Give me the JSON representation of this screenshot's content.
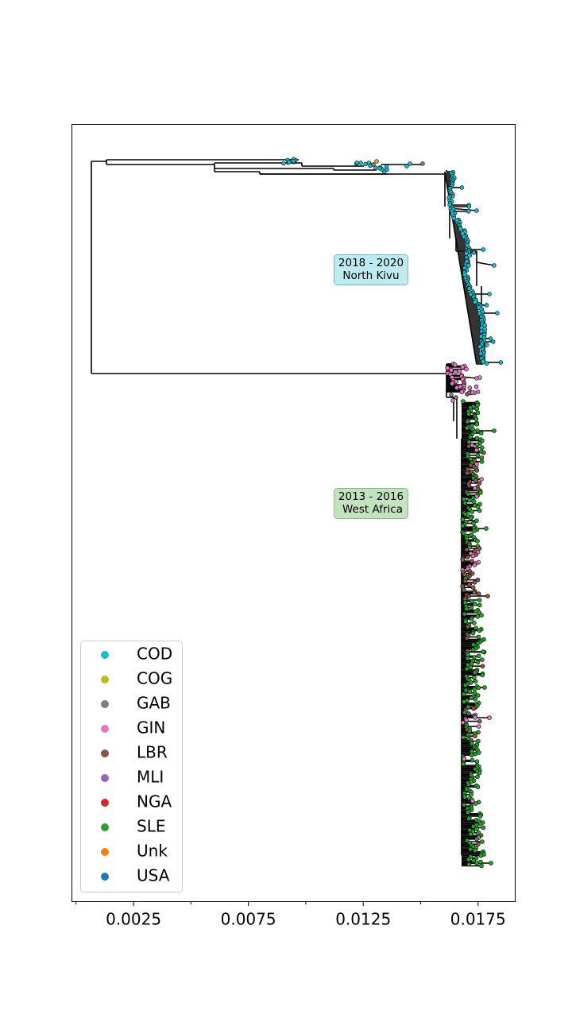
{
  "chart_data": {
    "type": "scatter",
    "subtype": "phylogenetic-tree",
    "title": "",
    "xlabel": "",
    "ylabel": "",
    "xlim": [
      -0.0002,
      0.0191
    ],
    "xticks_major": [
      0.0025,
      0.0075,
      0.0125,
      0.0175
    ],
    "xtick_labels": [
      "0.0025",
      "0.0075",
      "0.0125",
      "0.0175"
    ],
    "xticks_minor": [
      0.0,
      0.005,
      0.01,
      0.015
    ],
    "yticks": [],
    "grid": false,
    "legend_position": "lower-left",
    "legend": [
      {
        "label": "COD",
        "color": "#17becf"
      },
      {
        "label": "COG",
        "color": "#bcbd22"
      },
      {
        "label": "GAB",
        "color": "#7f7f7f"
      },
      {
        "label": "GIN",
        "color": "#e377c2"
      },
      {
        "label": "LBR",
        "color": "#8c564b"
      },
      {
        "label": "MLI",
        "color": "#9467bd"
      },
      {
        "label": "NGA",
        "color": "#d62728"
      },
      {
        "label": "SLE",
        "color": "#2ca02c"
      },
      {
        "label": "Unk",
        "color": "#ff7f0e"
      },
      {
        "label": "USA",
        "color": "#1f77b4"
      }
    ],
    "annotations": [
      {
        "line1": "2018 - 2020",
        "line2": "North Kivu",
        "x": 0.0125,
        "bg": "#bdebf0",
        "border": "#7fb8bf"
      },
      {
        "line1": "2013 - 2016",
        "line2": "West Africa",
        "x": 0.0125,
        "bg": "#c3e3bf",
        "border": "#8fb98a"
      }
    ],
    "clades": [
      {
        "name": "north-kivu",
        "color": "#17becf",
        "x_start": 0.0158,
        "x_tip_min": 0.0155,
        "x_tip_max": 0.0176
      },
      {
        "name": "west-africa",
        "color": "#2ca02c",
        "x_start": 0.0158,
        "x_tip_min": 0.0162,
        "x_tip_max": 0.0176
      },
      {
        "name": "early-cod",
        "color": "#17becf",
        "x_start": 0.0006,
        "x_tip_min": 0.0085,
        "x_tip_max": 0.0148
      }
    ]
  }
}
